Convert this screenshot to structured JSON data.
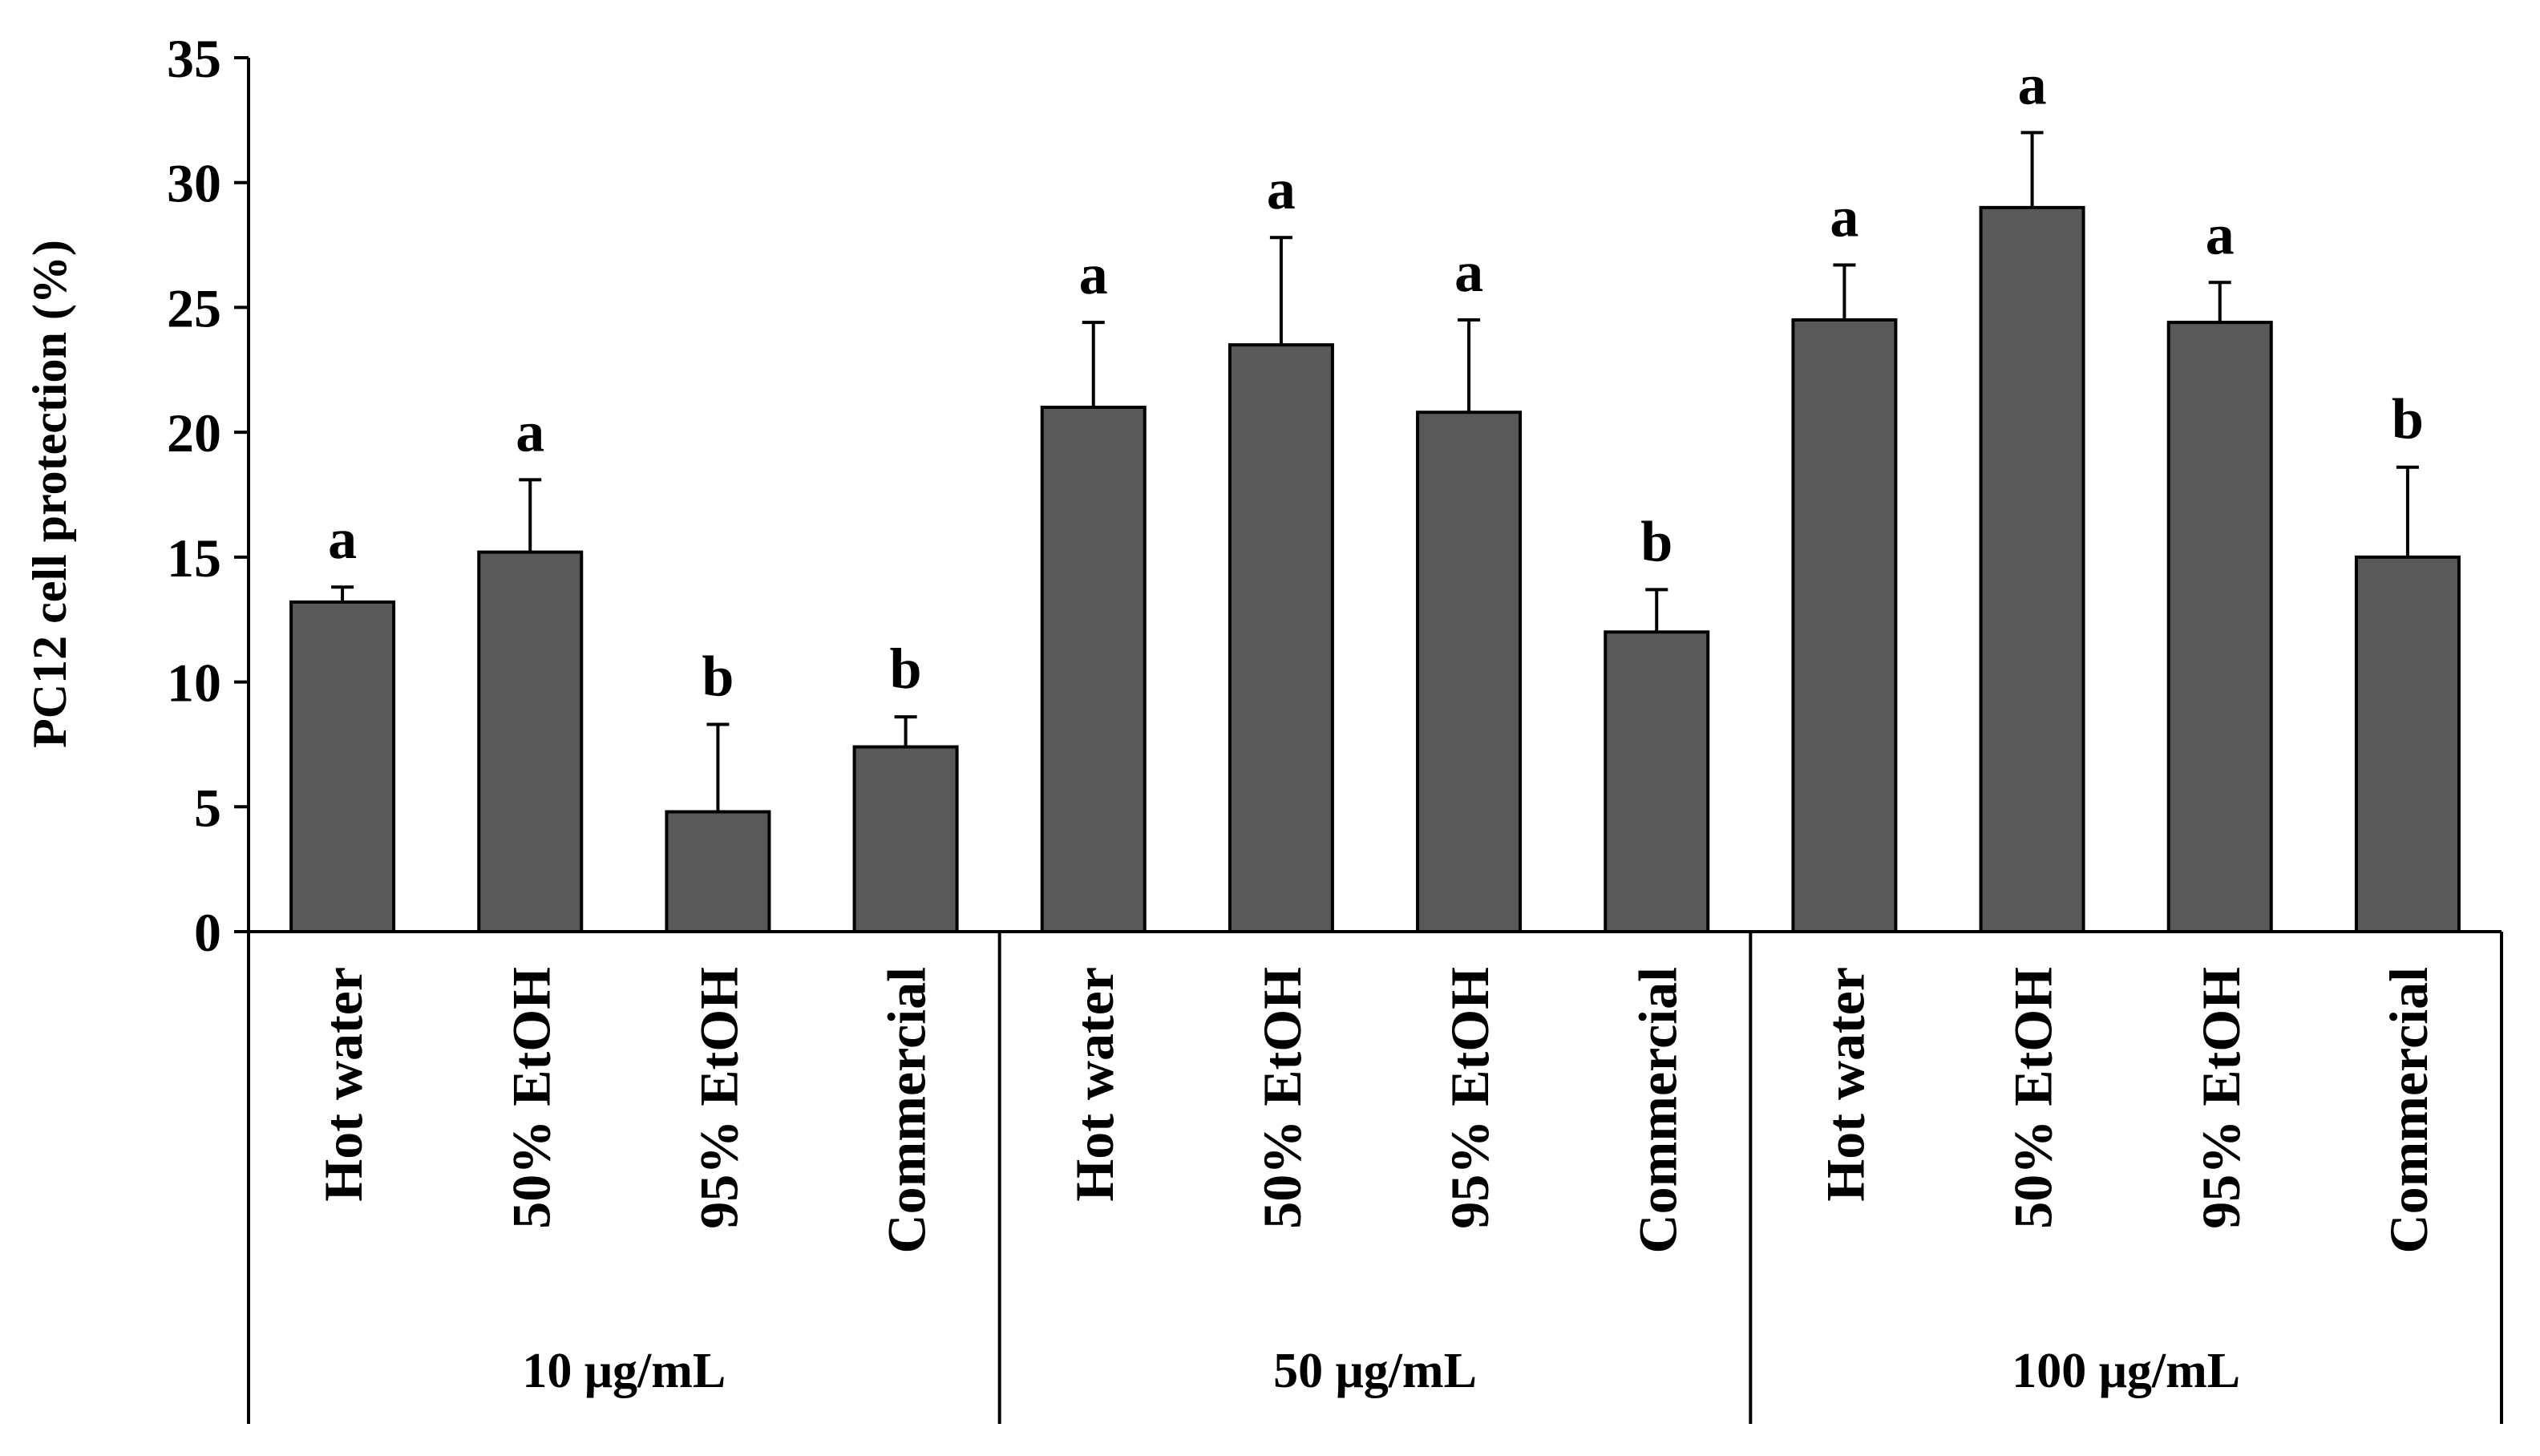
{
  "chart_data": {
    "type": "bar",
    "title": "",
    "xlabel": "",
    "ylabel": "PC12 cell protection (%)",
    "ylim": [
      0,
      35
    ],
    "yticks": [
      0,
      5,
      10,
      15,
      20,
      25,
      30,
      35
    ],
    "grid": false,
    "bar_color": "#595959",
    "groups": [
      {
        "label": "10 μg/mL",
        "categories": [
          "Hot water",
          "50%  EtOH",
          "95%  EtOH",
          "Commercial"
        ],
        "values": [
          13.2,
          15.2,
          4.8,
          7.4
        ],
        "errors": [
          0.6,
          2.9,
          3.5,
          1.2
        ],
        "significance": [
          "a",
          "a",
          "b",
          "b"
        ]
      },
      {
        "label": "50 μg/mL",
        "categories": [
          "Hot water",
          "50%  EtOH",
          "95%  EtOH",
          "Commercial"
        ],
        "values": [
          21.0,
          23.5,
          20.8,
          12.0
        ],
        "errors": [
          3.4,
          4.3,
          3.7,
          1.7
        ],
        "significance": [
          "a",
          "a",
          "a",
          "b"
        ]
      },
      {
        "label": "100 μg/mL",
        "categories": [
          "Hot water",
          "50%  EtOH",
          "95%  EtOH",
          "Commercial"
        ],
        "values": [
          24.5,
          29.0,
          24.4,
          15.0
        ],
        "errors": [
          2.2,
          3.0,
          1.6,
          3.6
        ],
        "significance": [
          "a",
          "a",
          "a",
          "b"
        ]
      }
    ]
  }
}
